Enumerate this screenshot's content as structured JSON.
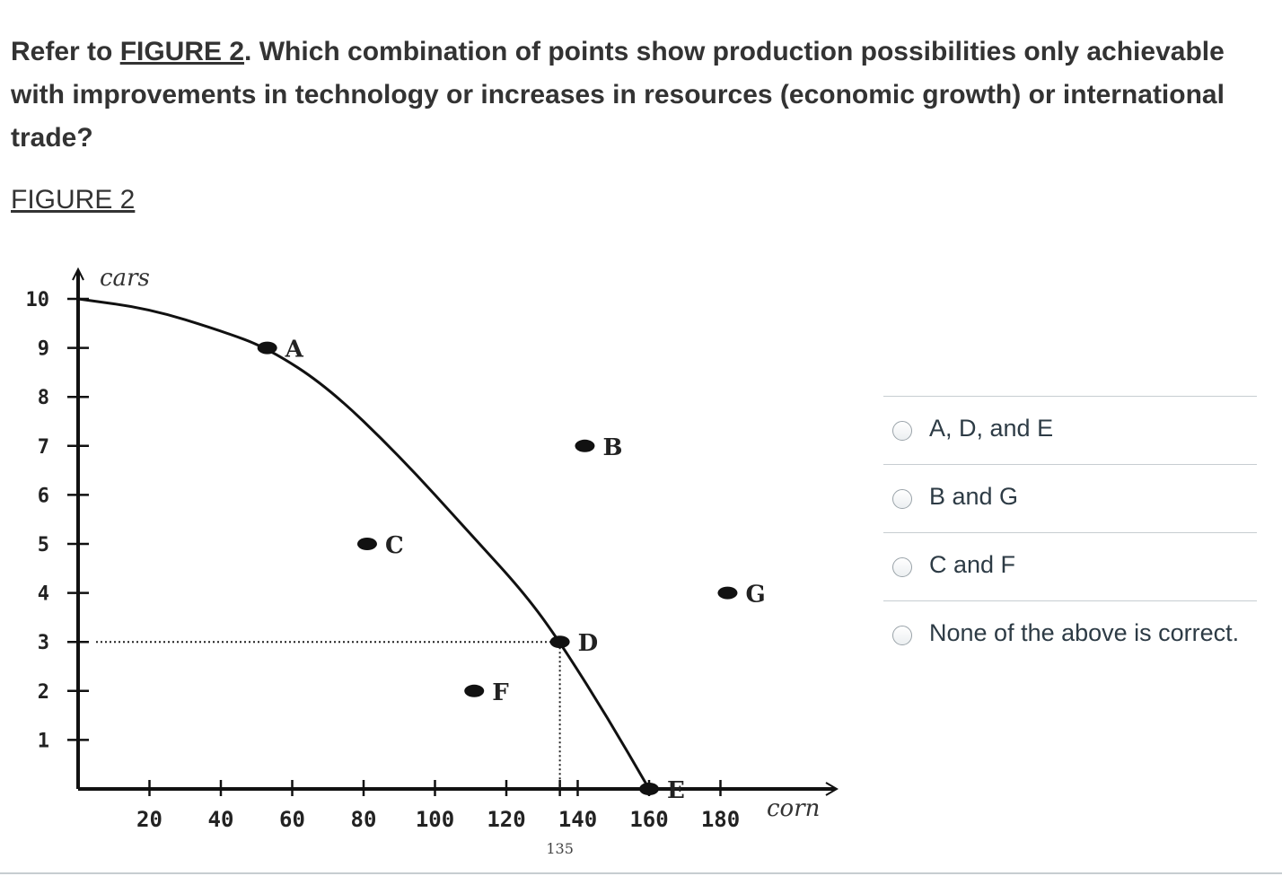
{
  "question": {
    "prefix": "Refer to ",
    "link": "FIGURE 2",
    "suffix": ".  Which combination of points show production possibilities only achievable with improvements in technology or increases in resources (economic growth) or international trade?"
  },
  "figure_link": "FIGURE 2",
  "answers": [
    {
      "label": "A, D, and E"
    },
    {
      "label": "B and G"
    },
    {
      "label": "C and F"
    },
    {
      "label": "None of the above is correct."
    }
  ],
  "chart_data": {
    "type": "scatter",
    "ylabel": "cars",
    "xlabel": "corn",
    "x_ticks": [
      "20",
      "40",
      "60",
      "80",
      "100",
      "120",
      "140",
      "160",
      "180"
    ],
    "x_extra_tick": "135",
    "y_ticks": [
      "1",
      "2",
      "3",
      "4",
      "5",
      "6",
      "7",
      "8",
      "9",
      "10"
    ],
    "xlim": [
      0,
      200
    ],
    "ylim": [
      0,
      10
    ],
    "ppf_curve": [
      [
        0,
        10
      ],
      [
        20,
        9.8
      ],
      [
        40,
        9.35
      ],
      [
        53,
        9
      ],
      [
        70,
        8.2
      ],
      [
        90,
        6.8
      ],
      [
        110,
        5.2
      ],
      [
        125,
        4
      ],
      [
        135,
        3
      ],
      [
        148,
        1.5
      ],
      [
        160,
        0
      ]
    ],
    "points": [
      {
        "label": "A",
        "x": 53,
        "y": 9
      },
      {
        "label": "B",
        "x": 142,
        "y": 7
      },
      {
        "label": "C",
        "x": 81,
        "y": 5
      },
      {
        "label": "D",
        "x": 135,
        "y": 3
      },
      {
        "label": "E",
        "x": 160,
        "y": 0
      },
      {
        "label": "F",
        "x": 111,
        "y": 2
      },
      {
        "label": "G",
        "x": 182,
        "y": 4
      }
    ],
    "reference_point": {
      "x": 135,
      "y": 3
    }
  }
}
